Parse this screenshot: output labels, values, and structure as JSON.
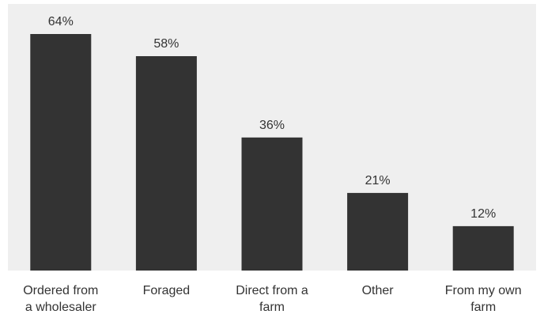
{
  "chart_data": {
    "type": "bar",
    "categories": [
      [
        "Ordered from",
        "a wholesaler"
      ],
      [
        "Foraged"
      ],
      [
        "Direct from a",
        "farm"
      ],
      [
        "Other"
      ],
      [
        "From my own",
        "farm"
      ]
    ],
    "values": [
      64,
      58,
      36,
      21,
      12
    ],
    "value_labels": [
      "64%",
      "58%",
      "36%",
      "21%",
      "12%"
    ],
    "value_unit": "%",
    "ylim": [
      0,
      70
    ],
    "grid": false,
    "legend": "none",
    "title": "",
    "xlabel": "",
    "ylabel": "",
    "colors": {
      "bar": "#333333",
      "plot_background": "#efefef",
      "text": "#333333",
      "baseline": "#cfcfcf"
    }
  }
}
